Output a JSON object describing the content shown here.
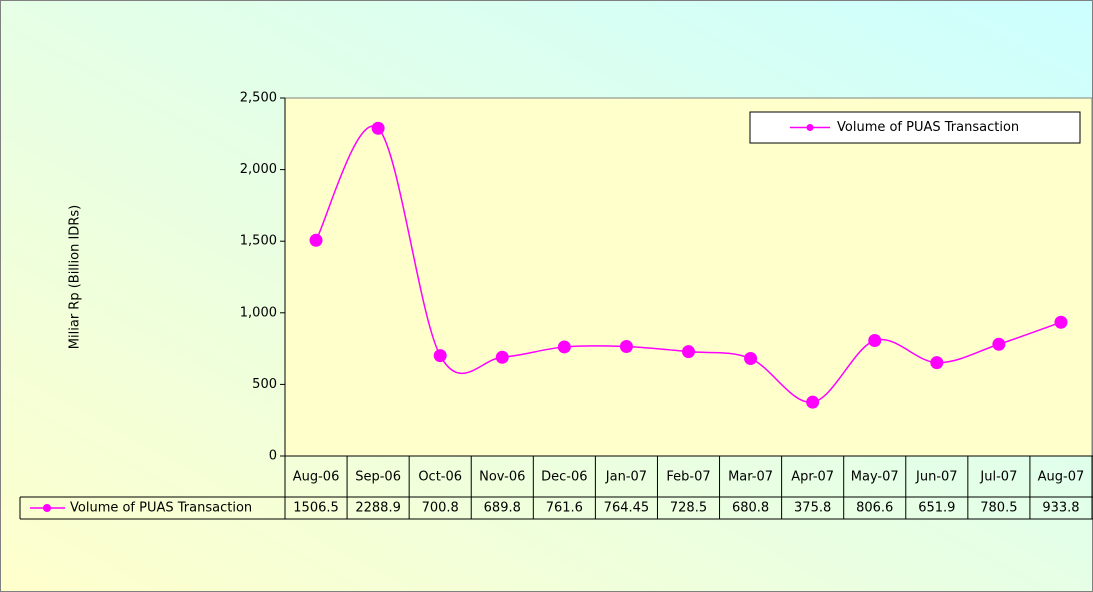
{
  "chart_data": {
    "type": "line",
    "y_label": "Miliar Rp (Billion IDRs)",
    "categories": [
      "Aug-06",
      "Sep-06",
      "Oct-06",
      "Nov-06",
      "Dec-06",
      "Jan-07",
      "Feb-07",
      "Mar-07",
      "Apr-07",
      "May-07",
      "Jun-07",
      "Jul-07",
      "Aug-07"
    ],
    "series": [
      {
        "name": "Volume of PUAS Transaction",
        "color": "#ff00ff",
        "values": [
          1506.5,
          2288.9,
          700.8,
          689.8,
          761.6,
          764.45,
          728.5,
          680.8,
          375.8,
          806.6,
          651.9,
          780.5,
          933.8
        ]
      }
    ],
    "ylim": [
      0,
      2500
    ],
    "yticks": [
      0,
      500,
      {
        "value": 1000,
        "label": "1,000"
      },
      {
        "value": 1500,
        "label": "1,500"
      },
      {
        "value": 2000,
        "label": "2,000"
      },
      {
        "value": 2500,
        "label": "2,500"
      }
    ],
    "legend": "upper right",
    "grid": false,
    "data_table": true
  }
}
